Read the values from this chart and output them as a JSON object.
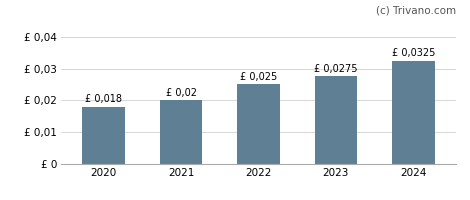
{
  "categories": [
    "2020",
    "2021",
    "2022",
    "2023",
    "2024"
  ],
  "values": [
    0.018,
    0.02,
    0.025,
    0.0275,
    0.0325
  ],
  "bar_labels": [
    "£ 0,018",
    "£ 0,02",
    "£ 0,025",
    "£ 0,0275",
    "£ 0,0325"
  ],
  "bar_color": "#5f8094",
  "ylim": [
    0,
    0.044
  ],
  "yticks": [
    0,
    0.01,
    0.02,
    0.03,
    0.04
  ],
  "ytick_labels": [
    "£ 0",
    "£ 0,01",
    "£ 0,02",
    "£ 0,03",
    "£ 0,04"
  ],
  "watermark": "(c) Trivano.com",
  "background_color": "#ffffff",
  "grid_color": "#d0d0d0",
  "bar_label_fontsize": 7.0,
  "axis_fontsize": 7.5,
  "watermark_fontsize": 7.5,
  "watermark_color": "#555555"
}
